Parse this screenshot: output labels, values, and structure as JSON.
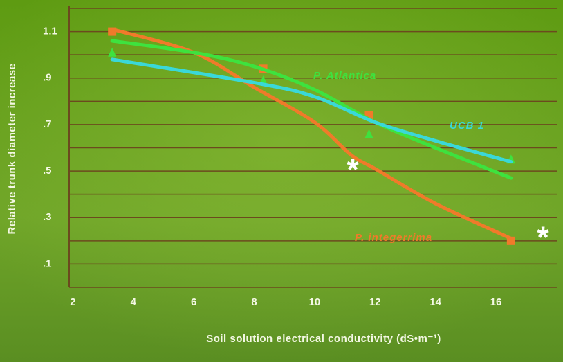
{
  "chart_data": {
    "type": "line",
    "xlabel": "Soil solution electrical conductivity (dS•m⁻¹)",
    "ylabel": "Relative trunk diameter increase",
    "xlim": [
      1.9,
      17.9
    ],
    "ylim": [
      0,
      1.2
    ],
    "xticks": [
      2,
      4,
      6,
      8,
      10,
      12,
      14,
      16
    ],
    "yticks": [
      {
        "value": 1.1,
        "label": "1.1"
      },
      {
        "value": 0.9,
        "label": ".9"
      },
      {
        "value": 0.7,
        "label": ".7"
      },
      {
        "value": 0.5,
        "label": ".5"
      },
      {
        "value": 0.3,
        "label": ".3"
      },
      {
        "value": 0.1,
        "label": ".1"
      }
    ],
    "ygrid": [
      0,
      0.1,
      0.2,
      0.3,
      0.4,
      0.5,
      0.6,
      0.7,
      0.8,
      0.9,
      1.0,
      1.1,
      1.2
    ],
    "grid_color": "#6b4a1e",
    "series": [
      {
        "name": "P. integerrima",
        "color": "#f07a2a",
        "marker": "square",
        "x": [
          3.3,
          8.3,
          11.8,
          16.5
        ],
        "values": [
          1.1,
          0.94,
          0.74,
          0.2
        ],
        "curve_x": [
          3.3,
          6,
          8,
          10,
          11.2,
          12,
          14,
          16.5
        ],
        "curve_values": [
          1.11,
          1.01,
          0.86,
          0.71,
          0.57,
          0.51,
          0.36,
          0.21
        ]
      },
      {
        "name": "P. Atlantica",
        "color": "#3ee23e",
        "marker": "triangle",
        "x": [
          3.3,
          8.3,
          11.8,
          16.5
        ],
        "values": [
          1.01,
          0.89,
          0.66,
          0.55
        ],
        "curve_x": [
          3.3,
          6,
          8,
          10,
          12,
          14,
          16.5
        ],
        "curve_values": [
          1.06,
          1.01,
          0.95,
          0.85,
          0.71,
          0.6,
          0.47
        ]
      },
      {
        "name": "UCB 1",
        "color": "#3ad8d8",
        "marker": "none",
        "x": [],
        "values": [],
        "curve_x": [
          3.3,
          8,
          10,
          12,
          14,
          16.5
        ],
        "curve_values": [
          0.98,
          0.88,
          0.82,
          0.71,
          0.63,
          0.54
        ]
      }
    ],
    "annotations": [
      "*",
      "*"
    ]
  }
}
